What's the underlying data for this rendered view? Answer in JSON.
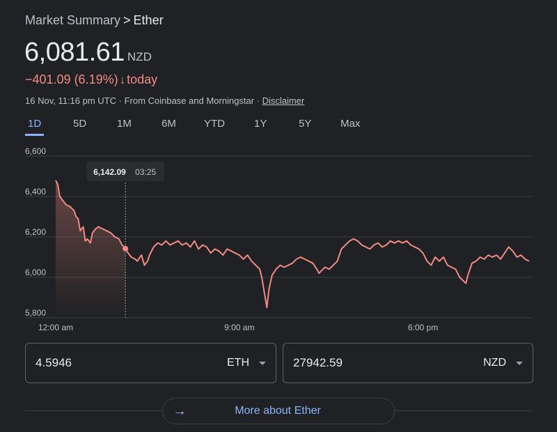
{
  "breadcrumb": {
    "parent": "Market Summary",
    "separator": ">",
    "current": "Ether"
  },
  "price": {
    "value": "6,081.61",
    "currency": "NZD"
  },
  "change": {
    "text": "−401.09 (6.19%)",
    "arrow": "↓",
    "period": "today",
    "color": "#f28b82"
  },
  "meta": {
    "timestamp": "16 Nov, 11:16 pm UTC · From Coinbase and Morningstar ·",
    "disclaimer": "Disclaimer"
  },
  "tabs": [
    {
      "label": "1D",
      "active": true
    },
    {
      "label": "5D"
    },
    {
      "label": "1M"
    },
    {
      "label": "6M"
    },
    {
      "label": "YTD"
    },
    {
      "label": "1Y"
    },
    {
      "label": "5Y"
    },
    {
      "label": "Max"
    }
  ],
  "converter": {
    "left": {
      "value": "4.5946",
      "unit": "ETH"
    },
    "right": {
      "value": "27942.59",
      "unit": "NZD"
    }
  },
  "more": {
    "label": "More about Ether",
    "icon": "arrow-right-icon"
  },
  "chart_data": {
    "type": "line",
    "ylim": [
      5800,
      6600
    ],
    "yticks": [
      "6,600",
      "6,400",
      "6,200",
      "6,000",
      "5,800"
    ],
    "ytick_values": [
      6600,
      6400,
      6200,
      6000,
      5800
    ],
    "xticks": [
      {
        "label": "12:00 am",
        "hour": 0
      },
      {
        "label": "9:00 am",
        "hour": 9
      },
      {
        "label": "6:00 pm",
        "hour": 18
      }
    ],
    "x_range_hours": [
      0,
      23.27
    ],
    "line_color": "#f28b82",
    "tooltip": {
      "value": "6,142.09",
      "time": "03:25",
      "hour": 3.4167
    },
    "series": [
      {
        "points": [
          [
            0.0,
            6480
          ],
          [
            0.1,
            6460
          ],
          [
            0.2,
            6400
          ],
          [
            0.35,
            6380
          ],
          [
            0.5,
            6360
          ],
          [
            0.7,
            6350
          ],
          [
            0.9,
            6330
          ],
          [
            1.0,
            6300
          ],
          [
            1.1,
            6290
          ],
          [
            1.2,
            6230
          ],
          [
            1.35,
            6250
          ],
          [
            1.45,
            6180
          ],
          [
            1.55,
            6190
          ],
          [
            1.7,
            6170
          ],
          [
            1.8,
            6220
          ],
          [
            1.95,
            6240
          ],
          [
            2.1,
            6250
          ],
          [
            2.3,
            6240
          ],
          [
            2.5,
            6230
          ],
          [
            2.7,
            6220
          ],
          [
            2.9,
            6200
          ],
          [
            3.1,
            6190
          ],
          [
            3.25,
            6160
          ],
          [
            3.35,
            6150
          ],
          [
            3.4167,
            6142
          ],
          [
            3.55,
            6120
          ],
          [
            3.7,
            6100
          ],
          [
            3.9,
            6090
          ],
          [
            4.0,
            6080
          ],
          [
            4.2,
            6110
          ],
          [
            4.35,
            6060
          ],
          [
            4.5,
            6080
          ],
          [
            4.6,
            6110
          ],
          [
            4.8,
            6150
          ],
          [
            5.0,
            6170
          ],
          [
            5.2,
            6160
          ],
          [
            5.4,
            6180
          ],
          [
            5.6,
            6160
          ],
          [
            5.8,
            6170
          ],
          [
            6.0,
            6180
          ],
          [
            6.2,
            6160
          ],
          [
            6.4,
            6170
          ],
          [
            6.6,
            6150
          ],
          [
            6.8,
            6180
          ],
          [
            7.0,
            6140
          ],
          [
            7.2,
            6160
          ],
          [
            7.4,
            6150
          ],
          [
            7.6,
            6120
          ],
          [
            7.8,
            6140
          ],
          [
            8.0,
            6130
          ],
          [
            8.2,
            6110
          ],
          [
            8.4,
            6140
          ],
          [
            8.6,
            6130
          ],
          [
            8.8,
            6120
          ],
          [
            9.0,
            6110
          ],
          [
            9.2,
            6090
          ],
          [
            9.4,
            6110
          ],
          [
            9.6,
            6080
          ],
          [
            9.8,
            6060
          ],
          [
            10.0,
            6040
          ],
          [
            10.1,
            6000
          ],
          [
            10.2,
            5940
          ],
          [
            10.3,
            5880
          ],
          [
            10.35,
            5850
          ],
          [
            10.45,
            5940
          ],
          [
            10.6,
            6010
          ],
          [
            10.8,
            6040
          ],
          [
            11.0,
            6060
          ],
          [
            11.2,
            6050
          ],
          [
            11.4,
            6060
          ],
          [
            11.6,
            6070
          ],
          [
            11.8,
            6090
          ],
          [
            12.0,
            6100
          ],
          [
            12.2,
            6090
          ],
          [
            12.4,
            6080
          ],
          [
            12.6,
            6070
          ],
          [
            12.8,
            6040
          ],
          [
            12.9,
            6020
          ],
          [
            13.0,
            6030
          ],
          [
            13.2,
            6050
          ],
          [
            13.4,
            6040
          ],
          [
            13.6,
            6060
          ],
          [
            13.8,
            6080
          ],
          [
            14.0,
            6140
          ],
          [
            14.2,
            6160
          ],
          [
            14.4,
            6180
          ],
          [
            14.6,
            6190
          ],
          [
            14.8,
            6180
          ],
          [
            15.0,
            6160
          ],
          [
            15.2,
            6150
          ],
          [
            15.4,
            6140
          ],
          [
            15.6,
            6160
          ],
          [
            15.8,
            6170
          ],
          [
            16.0,
            6150
          ],
          [
            16.2,
            6160
          ],
          [
            16.4,
            6180
          ],
          [
            16.6,
            6170
          ],
          [
            16.8,
            6180
          ],
          [
            17.0,
            6170
          ],
          [
            17.2,
            6180
          ],
          [
            17.4,
            6160
          ],
          [
            17.6,
            6150
          ],
          [
            17.8,
            6140
          ],
          [
            18.0,
            6120
          ],
          [
            18.2,
            6080
          ],
          [
            18.4,
            6060
          ],
          [
            18.6,
            6100
          ],
          [
            18.8,
            6080
          ],
          [
            19.0,
            6100
          ],
          [
            19.2,
            6060
          ],
          [
            19.4,
            6050
          ],
          [
            19.6,
            6040
          ],
          [
            19.8,
            6000
          ],
          [
            20.0,
            5980
          ],
          [
            20.1,
            5970
          ],
          [
            20.2,
            6010
          ],
          [
            20.4,
            6070
          ],
          [
            20.6,
            6080
          ],
          [
            20.8,
            6100
          ],
          [
            21.0,
            6090
          ],
          [
            21.2,
            6110
          ],
          [
            21.4,
            6100
          ],
          [
            21.6,
            6110
          ],
          [
            21.8,
            6090
          ],
          [
            22.0,
            6120
          ],
          [
            22.2,
            6150
          ],
          [
            22.4,
            6130
          ],
          [
            22.6,
            6100
          ],
          [
            22.8,
            6110
          ],
          [
            23.0,
            6090
          ],
          [
            23.2,
            6080
          ]
        ]
      }
    ]
  }
}
